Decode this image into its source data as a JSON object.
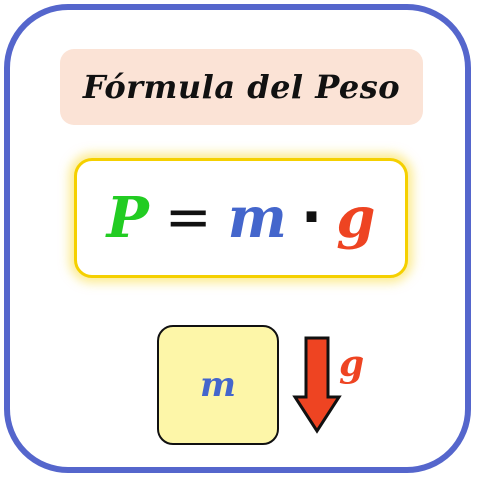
{
  "title": "Fórmula del Peso",
  "formula": {
    "weight_symbol": "P",
    "equals": "=",
    "mass_symbol": "m",
    "dot": "·",
    "gravity_symbol": "g"
  },
  "diagram": {
    "mass_label": "m",
    "gravity_label": "g"
  },
  "colors": {
    "frame": "#5566cc",
    "title_bg": "#fbe3d6",
    "formula_border": "#f5d000",
    "weight": "#22cc22",
    "mass": "#4466cc",
    "gravity": "#ee4422",
    "mass_box": "#fdf6a8",
    "arrow": "#ee4422"
  },
  "icons": {
    "arrow": "down-arrow-icon"
  }
}
